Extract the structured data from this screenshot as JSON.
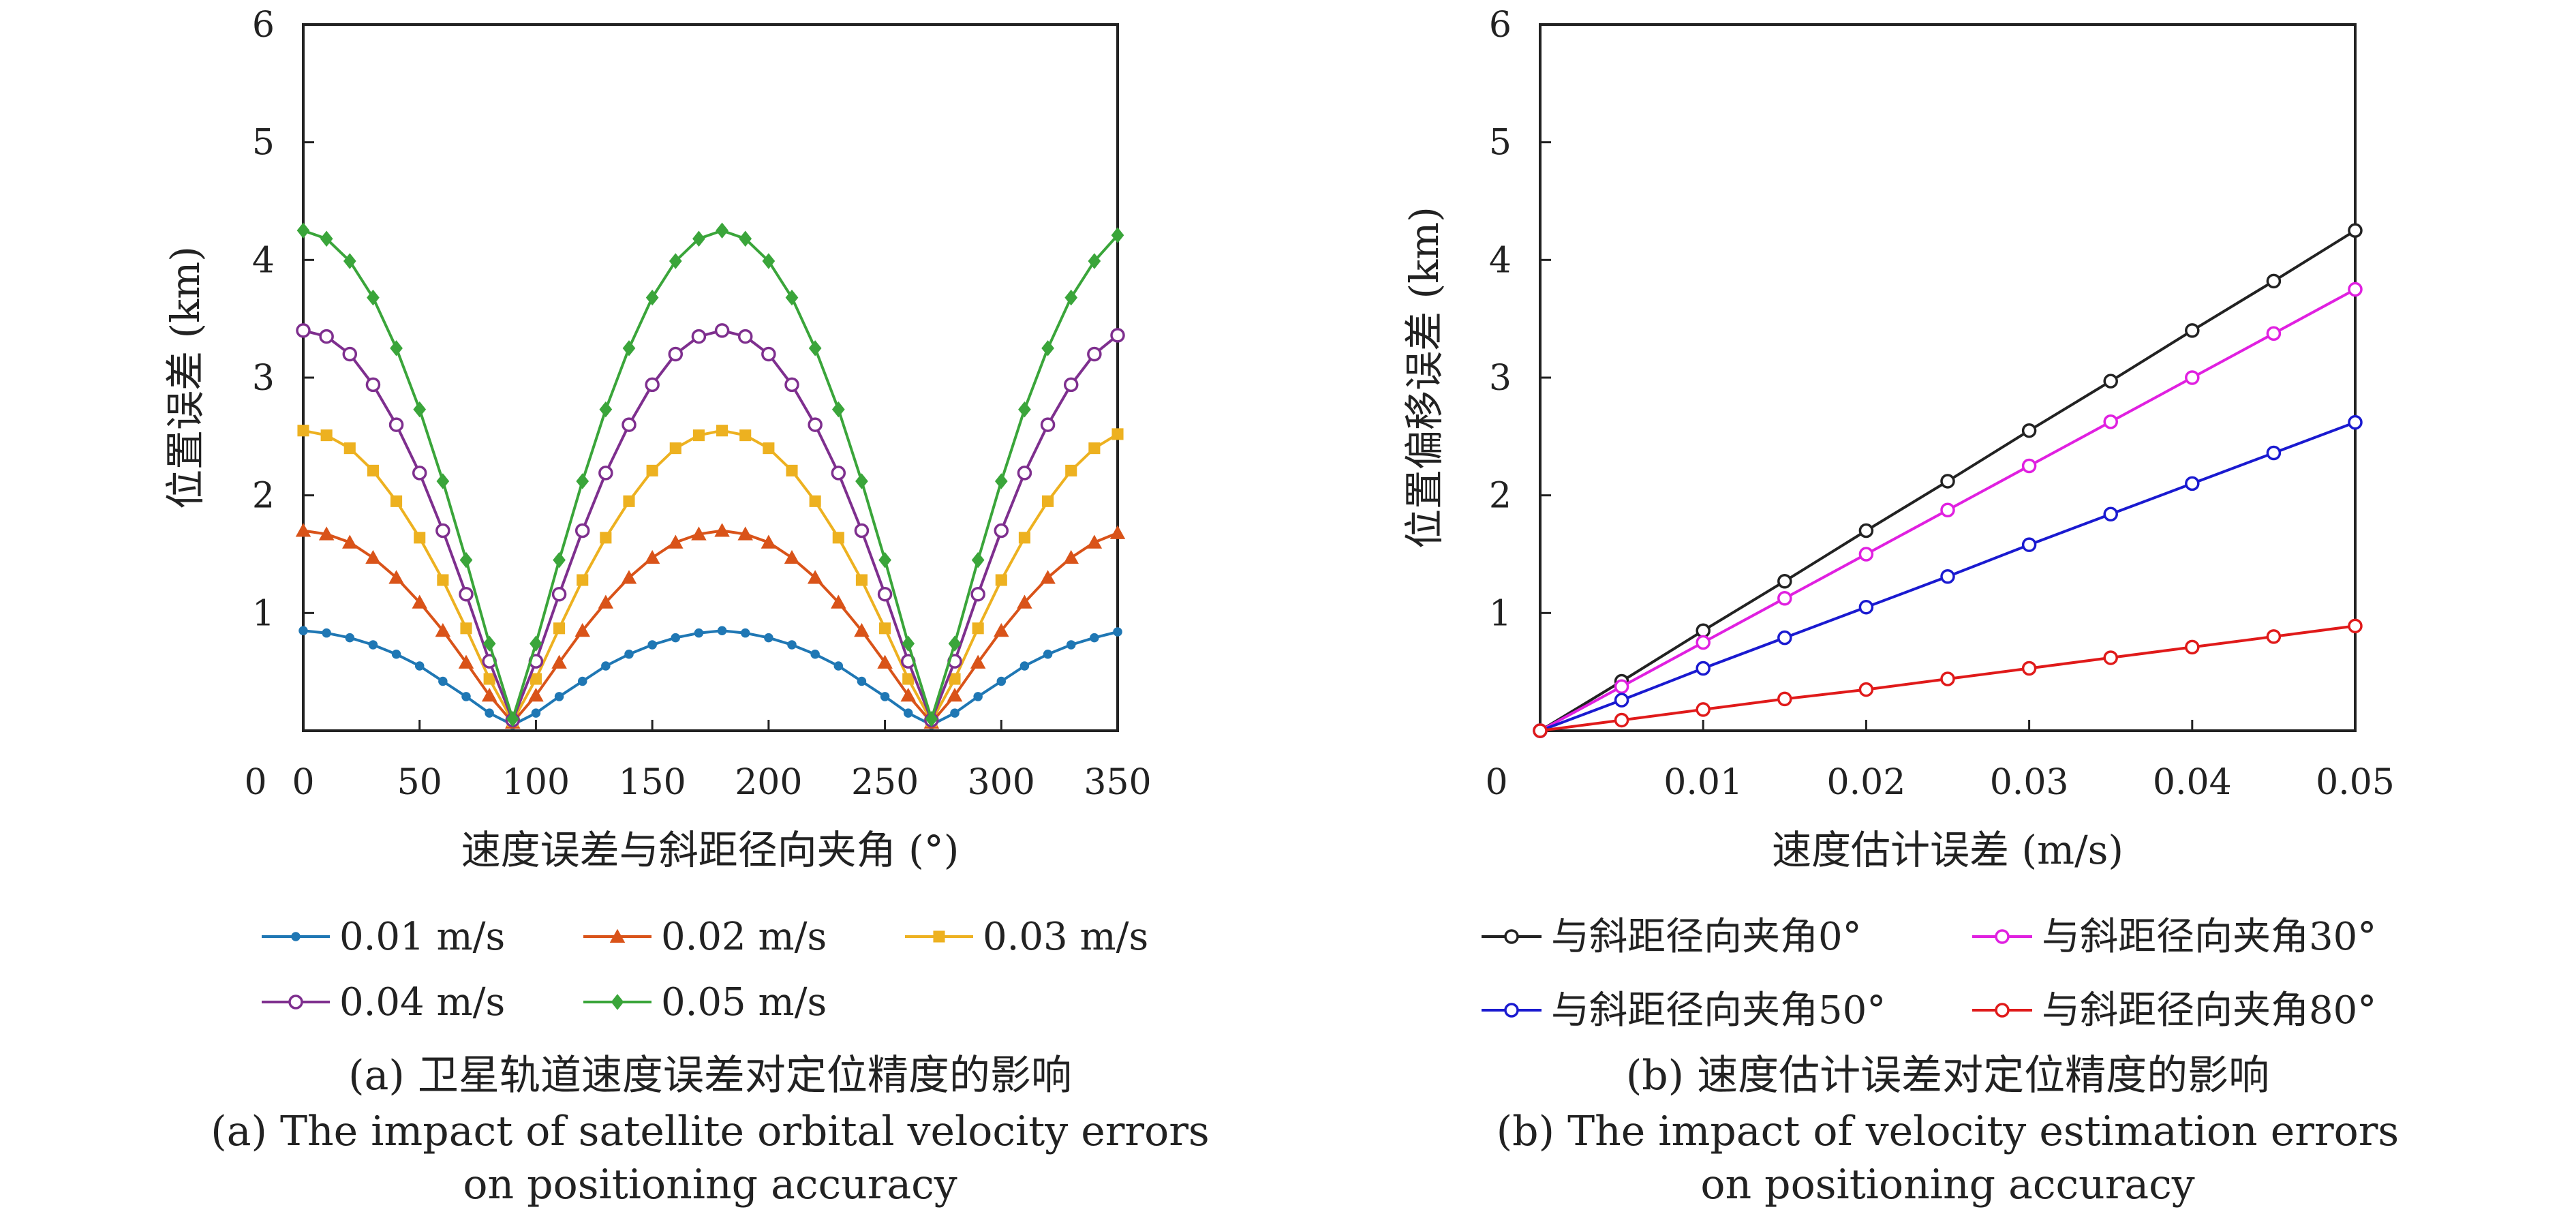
{
  "chart_data": [
    {
      "id": "a",
      "type": "line",
      "xlabel": "速度误差与斜距径向夹角 (°)",
      "ylabel": "位置误差 (km)",
      "xlim": [
        0,
        350
      ],
      "ylim": [
        0,
        6
      ],
      "xticks": [
        0,
        50,
        100,
        150,
        200,
        250,
        300,
        350
      ],
      "yticks": [
        1,
        2,
        3,
        4,
        5,
        6
      ],
      "origin_label": "0",
      "grid": false,
      "legend_position": "below plot, 3 columns",
      "caption_cn": "(a) 卫星轨道速度误差对定位精度的影响",
      "caption_en_line1": "(a) The impact of satellite orbital velocity errors",
      "caption_en_line2": "on positioning accuracy",
      "x": [
        0,
        10,
        20,
        30,
        40,
        50,
        60,
        70,
        80,
        90,
        100,
        110,
        120,
        130,
        140,
        150,
        160,
        170,
        180,
        190,
        200,
        210,
        220,
        230,
        240,
        250,
        260,
        270,
        280,
        290,
        300,
        310,
        320,
        330,
        340,
        350
      ],
      "series": [
        {
          "name": "0.01 m/s",
          "color": "#1f77b4",
          "marker": "dot",
          "values": [
            0.85,
            0.83,
            0.79,
            0.73,
            0.65,
            0.55,
            0.42,
            0.29,
            0.15,
            0.05,
            0.15,
            0.29,
            0.42,
            0.55,
            0.65,
            0.73,
            0.79,
            0.83,
            0.85,
            0.83,
            0.79,
            0.73,
            0.65,
            0.55,
            0.42,
            0.29,
            0.15,
            0.05,
            0.15,
            0.29,
            0.42,
            0.55,
            0.65,
            0.73,
            0.79,
            0.84
          ]
        },
        {
          "name": "0.02 m/s",
          "color": "#d95319",
          "marker": "triangle",
          "values": [
            1.7,
            1.67,
            1.6,
            1.47,
            1.3,
            1.09,
            0.85,
            0.58,
            0.3,
            0.07,
            0.3,
            0.58,
            0.85,
            1.09,
            1.3,
            1.47,
            1.6,
            1.67,
            1.7,
            1.67,
            1.6,
            1.47,
            1.3,
            1.09,
            0.85,
            0.58,
            0.3,
            0.07,
            0.3,
            0.58,
            0.85,
            1.09,
            1.3,
            1.47,
            1.6,
            1.68
          ]
        },
        {
          "name": "0.03 m/s",
          "color": "#edb120",
          "marker": "square",
          "values": [
            2.55,
            2.51,
            2.4,
            2.21,
            1.95,
            1.64,
            1.28,
            0.87,
            0.44,
            0.08,
            0.44,
            0.87,
            1.28,
            1.64,
            1.95,
            2.21,
            2.4,
            2.51,
            2.55,
            2.51,
            2.4,
            2.21,
            1.95,
            1.64,
            1.28,
            0.87,
            0.44,
            0.08,
            0.44,
            0.87,
            1.28,
            1.64,
            1.95,
            2.21,
            2.4,
            2.52
          ]
        },
        {
          "name": "0.04 m/s",
          "color": "#7e2f8e",
          "marker": "circle",
          "values": [
            3.4,
            3.35,
            3.2,
            2.94,
            2.6,
            2.19,
            1.7,
            1.16,
            0.59,
            0.09,
            0.59,
            1.16,
            1.7,
            2.19,
            2.6,
            2.94,
            3.2,
            3.35,
            3.4,
            3.35,
            3.2,
            2.94,
            2.6,
            2.19,
            1.7,
            1.16,
            0.59,
            0.09,
            0.59,
            1.16,
            1.7,
            2.19,
            2.6,
            2.94,
            3.2,
            3.36
          ]
        },
        {
          "name": "0.05 m/s",
          "color": "#3aa53a",
          "marker": "diamond",
          "values": [
            4.25,
            4.18,
            3.99,
            3.68,
            3.25,
            2.73,
            2.12,
            1.45,
            0.74,
            0.1,
            0.74,
            1.45,
            2.12,
            2.73,
            3.25,
            3.68,
            3.99,
            4.18,
            4.25,
            4.18,
            3.99,
            3.68,
            3.25,
            2.73,
            2.12,
            1.45,
            0.74,
            0.1,
            0.74,
            1.45,
            2.12,
            2.73,
            3.25,
            3.68,
            3.99,
            4.21
          ]
        }
      ]
    },
    {
      "id": "b",
      "type": "line",
      "xlabel": "速度估计误差 (m/s)",
      "ylabel": "位置偏移误差 (km)",
      "xlim": [
        0,
        0.05
      ],
      "ylim": [
        0,
        6
      ],
      "xticks": [
        0.01,
        0.02,
        0.03,
        0.04,
        0.05
      ],
      "yticks": [
        1,
        2,
        3,
        4,
        5,
        6
      ],
      "origin_label": "0",
      "grid": false,
      "legend_position": "below plot, 2 columns",
      "caption_cn": "(b) 速度估计误差对定位精度的影响",
      "caption_en_line1": "(b) The impact of velocity estimation errors",
      "caption_en_line2": "on positioning accuracy",
      "x": [
        0,
        0.005,
        0.01,
        0.015,
        0.02,
        0.025,
        0.03,
        0.035,
        0.04,
        0.045,
        0.05
      ],
      "series": [
        {
          "name": "与斜距径向夹角0°",
          "color": "#222222",
          "marker": "circle",
          "values": [
            0,
            0.42,
            0.85,
            1.27,
            1.7,
            2.12,
            2.55,
            2.97,
            3.4,
            3.82,
            4.25
          ]
        },
        {
          "name": "与斜距径向夹角30°",
          "color": "#e020e0",
          "marker": "circle",
          "values": [
            0,
            0.375,
            0.75,
            1.125,
            1.5,
            1.875,
            2.25,
            2.625,
            3.0,
            3.375,
            3.75
          ]
        },
        {
          "name": "与斜距径向夹角50°",
          "color": "#1a1ad0",
          "marker": "circle",
          "values": [
            0,
            0.26,
            0.53,
            0.79,
            1.05,
            1.31,
            1.58,
            1.84,
            2.1,
            2.36,
            2.62
          ]
        },
        {
          "name": "与斜距径向夹角80°",
          "color": "#e01a1a",
          "marker": "circle",
          "values": [
            0,
            0.09,
            0.18,
            0.27,
            0.35,
            0.44,
            0.53,
            0.62,
            0.71,
            0.8,
            0.89
          ]
        }
      ]
    }
  ]
}
